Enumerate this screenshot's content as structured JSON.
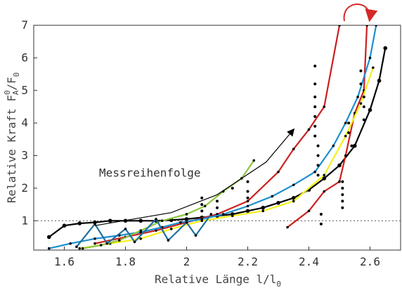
{
  "chart_data": {
    "type": "line",
    "title": "",
    "xlabel": "Relative Länge l/l",
    "xlabel_sub": "0",
    "ylabel": "Relative Kraft F",
    "ylabel_sup": "0",
    "ylabel_sub": "A",
    "ylabel_tail": "/F",
    "ylabel_tail_sub": "0",
    "xlim": [
      1.5,
      2.7
    ],
    "ylim": [
      0.1,
      7
    ],
    "x_ticks": [
      1.6,
      1.8,
      2,
      2.2,
      2.4,
      2.6
    ],
    "x_tick_labels": [
      "1.6",
      "1.8",
      "2",
      "2.2",
      "2.4",
      "2.6"
    ],
    "y_ticks": [
      1,
      2,
      3,
      4,
      5,
      6,
      7
    ],
    "y_tick_labels": [
      "1",
      "2",
      "3",
      "4",
      "5",
      "6",
      "7"
    ],
    "reference_line": {
      "y": 1,
      "style": "dotted"
    },
    "grid": false,
    "annotation": {
      "text": "Messreihenfolge",
      "x": 1.88,
      "y": 2.35
    },
    "sequence_arrow": [
      [
        1.7,
        0.85
      ],
      [
        1.95,
        1.25
      ],
      [
        2.1,
        1.8
      ],
      [
        2.26,
        2.8
      ],
      [
        2.35,
        3.8
      ]
    ],
    "colors": {
      "black": "#000000",
      "red": "#cc1f1f",
      "blue": "#1a8fd0",
      "yellow": "#f2f21a",
      "green": "#8ec63f",
      "dark_blue": "#1f6fa0",
      "arrow_red": "#d62828"
    },
    "series": [
      {
        "color_key": "black",
        "x": [
          1.55,
          1.6,
          1.65,
          1.7,
          1.75,
          1.8,
          1.85,
          1.9,
          1.95,
          2.0,
          2.05,
          2.1,
          2.15,
          2.2,
          2.25,
          2.3,
          2.35,
          2.4,
          2.45,
          2.5,
          2.55,
          2.6,
          2.63,
          2.65
        ],
        "y": [
          0.5,
          0.85,
          0.92,
          0.95,
          1.0,
          1.0,
          1.0,
          1.0,
          1.02,
          1.05,
          1.1,
          1.15,
          1.2,
          1.3,
          1.4,
          1.55,
          1.7,
          1.95,
          2.3,
          2.7,
          3.3,
          4.4,
          5.3,
          6.3
        ]
      },
      {
        "color_key": "red",
        "x": [
          1.7,
          1.8,
          1.9,
          2.0,
          2.1,
          2.2,
          2.3,
          2.35,
          2.4,
          2.45,
          2.5
        ],
        "y": [
          0.3,
          0.5,
          0.7,
          0.95,
          1.2,
          1.6,
          2.5,
          3.2,
          3.8,
          4.5,
          7.0
        ]
      },
      {
        "color_key": "red",
        "x": [
          2.33,
          2.4,
          2.45,
          2.5,
          2.52,
          2.55,
          2.58,
          2.59
        ],
        "y": [
          0.8,
          1.3,
          1.9,
          2.2,
          3.0,
          4.3,
          5.0,
          7.0
        ]
      },
      {
        "color_key": "blue",
        "x": [
          1.55,
          1.62,
          1.7,
          1.78,
          1.85,
          1.92,
          1.98,
          2.05,
          2.12,
          2.2,
          2.28,
          2.35,
          2.42,
          2.48,
          2.52,
          2.56,
          2.6,
          2.62
        ],
        "y": [
          0.15,
          0.3,
          0.45,
          0.55,
          0.65,
          0.8,
          0.95,
          1.05,
          1.2,
          1.45,
          1.75,
          2.1,
          2.5,
          3.3,
          4.0,
          4.8,
          6.0,
          7.0
        ]
      },
      {
        "color_key": "yellow",
        "x": [
          1.65,
          1.75,
          1.85,
          1.95,
          2.05,
          2.15,
          2.25,
          2.35,
          2.45,
          2.52,
          2.57,
          2.61
        ],
        "y": [
          0.15,
          0.3,
          0.45,
          0.75,
          1.0,
          1.15,
          1.3,
          1.6,
          2.4,
          3.6,
          4.6,
          5.7
        ]
      },
      {
        "color_key": "green",
        "x": [
          1.66,
          1.72,
          1.78,
          1.85,
          1.92,
          2.0,
          2.06,
          2.12,
          2.18,
          2.22
        ],
        "y": [
          0.15,
          0.25,
          0.4,
          0.7,
          1.0,
          1.2,
          1.45,
          1.9,
          2.3,
          2.85
        ]
      },
      {
        "color_key": "dark_blue",
        "x": [
          1.64,
          1.7,
          1.74,
          1.8,
          1.83,
          1.9,
          1.94,
          2.0,
          2.03,
          2.08
        ],
        "y": [
          0.2,
          0.9,
          0.3,
          0.75,
          0.35,
          1.05,
          0.4,
          0.95,
          0.55,
          1.2
        ]
      }
    ],
    "scatter_points": {
      "x": [
        2.05,
        2.05,
        2.05,
        2.1,
        2.1,
        2.15,
        2.2,
        2.2,
        2.2,
        2.42,
        2.42,
        2.42,
        2.42,
        2.42,
        2.42,
        2.42,
        2.43,
        2.43,
        2.43,
        2.43,
        2.44,
        2.44,
        2.51,
        2.51,
        2.51,
        2.51,
        2.51,
        2.53,
        2.53,
        2.54,
        2.57,
        2.57,
        2.58,
        2.58,
        2.58
      ],
      "y": [
        1.7,
        1.5,
        1.3,
        1.6,
        1.4,
        2.0,
        2.2,
        1.9,
        1.7,
        5.75,
        5.2,
        4.8,
        4.5,
        4.2,
        3.9,
        3.6,
        3.3,
        3.0,
        2.7,
        2.4,
        1.2,
        0.9,
        2.2,
        2.0,
        1.8,
        1.6,
        1.4,
        4.0,
        3.7,
        3.3,
        5.6,
        5.2,
        4.8,
        4.5,
        4.1
      ]
    }
  }
}
